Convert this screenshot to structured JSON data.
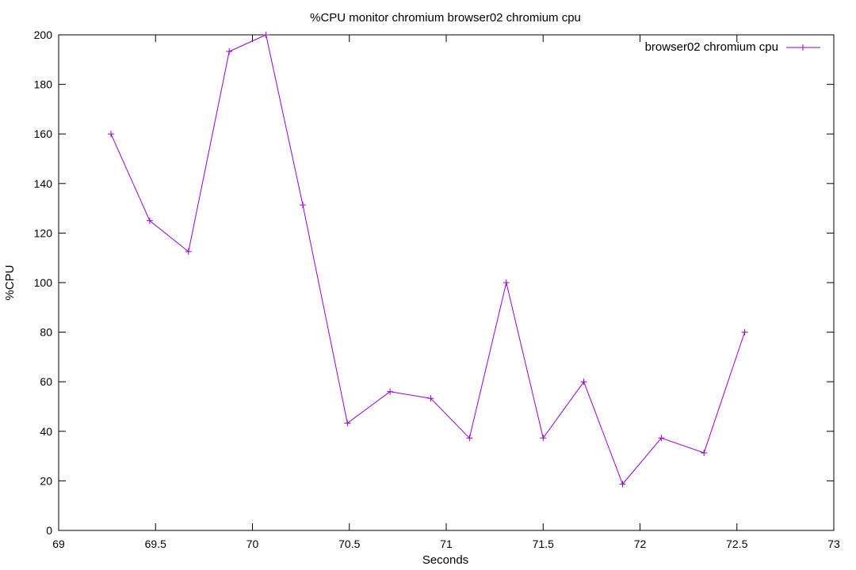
{
  "chart_data": {
    "type": "line",
    "title": "%CPU monitor chromium browser02 chromium cpu",
    "xlabel": "Seconds",
    "ylabel": "%CPU",
    "xlim": [
      69,
      73
    ],
    "ylim": [
      0,
      200
    ],
    "x_ticks": [
      "69",
      "69.5",
      "70",
      "70.5",
      "71",
      "71.5",
      "72",
      "72.5",
      "73"
    ],
    "y_ticks": [
      "0",
      "20",
      "40",
      "60",
      "80",
      "100",
      "120",
      "140",
      "160",
      "180",
      "200"
    ],
    "grid": false,
    "legend_position": "top-right",
    "series": [
      {
        "name": "browser02 chromium cpu",
        "color": "#9400d3",
        "marker": "plus",
        "x": [
          69.27,
          69.47,
          69.67,
          69.88,
          70.07,
          70.26,
          70.49,
          70.71,
          70.92,
          71.12,
          71.31,
          71.5,
          71.71,
          71.91,
          72.11,
          72.33,
          72.54
        ],
        "y": [
          160,
          125,
          112.5,
          193.3,
          200,
          131.3,
          43.3,
          56.0,
          53.3,
          37.3,
          100,
          37.3,
          60.0,
          18.7,
          37.3,
          31.3,
          80.0
        ]
      }
    ]
  }
}
